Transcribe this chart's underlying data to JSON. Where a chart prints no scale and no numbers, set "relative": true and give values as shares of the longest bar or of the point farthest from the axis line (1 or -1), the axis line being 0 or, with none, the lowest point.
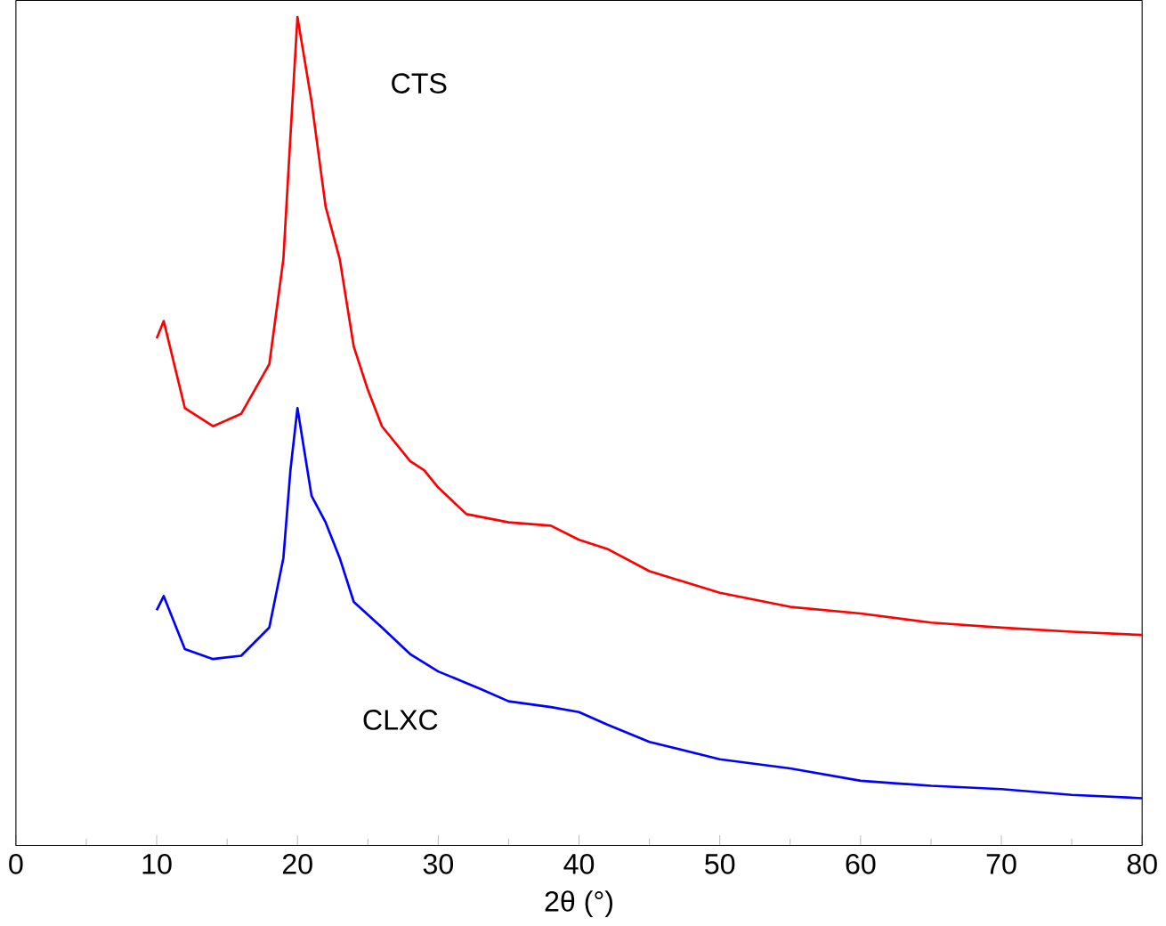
{
  "chart_data": {
    "type": "line",
    "relative": true,
    "xlabel": "2θ (°)",
    "xlim": [
      0,
      80
    ],
    "xticks": [
      0,
      10,
      20,
      30,
      40,
      50,
      60,
      70,
      80
    ],
    "legend": false,
    "grid": false,
    "marker": "none",
    "line_style": "solid",
    "series": [
      {
        "name": "CTS",
        "color": "#ff0000",
        "x": [
          10,
          10.5,
          12,
          14,
          16,
          18,
          19,
          19.5,
          20,
          21,
          22,
          23,
          24,
          25,
          26,
          28,
          29,
          30,
          32,
          35,
          38,
          40,
          42,
          45,
          50,
          55,
          60,
          65,
          70,
          75,
          80
        ],
        "values": [
          0.612,
          0.633,
          0.528,
          0.506,
          0.521,
          0.581,
          0.708,
          0.856,
          1.0,
          0.898,
          0.771,
          0.708,
          0.602,
          0.55,
          0.506,
          0.464,
          0.453,
          0.432,
          0.4,
          0.39,
          0.386,
          0.369,
          0.358,
          0.331,
          0.305,
          0.288,
          0.28,
          0.269,
          0.263,
          0.258,
          0.254
        ]
      },
      {
        "name": "CLXC",
        "color": "#0000ff",
        "x": [
          10,
          10.5,
          12,
          14,
          16,
          18,
          19,
          19.5,
          20,
          21,
          22,
          23,
          24,
          26,
          28,
          30,
          33,
          35,
          38,
          40,
          42,
          45,
          50,
          55,
          60,
          65,
          70,
          75,
          80
        ],
        "values": [
          0.284,
          0.301,
          0.237,
          0.225,
          0.229,
          0.263,
          0.347,
          0.453,
          0.528,
          0.422,
          0.39,
          0.347,
          0.294,
          0.263,
          0.231,
          0.21,
          0.189,
          0.174,
          0.167,
          0.161,
          0.146,
          0.125,
          0.104,
          0.093,
          0.078,
          0.072,
          0.068,
          0.061,
          0.057
        ]
      }
    ]
  }
}
